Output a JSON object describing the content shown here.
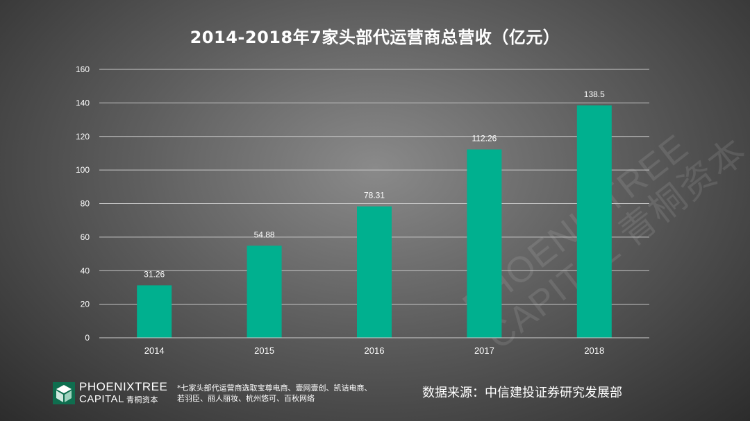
{
  "chart_data": {
    "type": "bar",
    "title": "2014-2018年7家头部代运营商总营收（亿元）",
    "categories": [
      "2014",
      "2015",
      "2016",
      "2017",
      "2018"
    ],
    "values": [
      31.26,
      54.88,
      78.31,
      112.26,
      138.5
    ],
    "data_labels": [
      "31.26",
      "54.88",
      "78.31",
      "112.26",
      "138.5"
    ],
    "yticks": [
      "0",
      "20",
      "40",
      "60",
      "80",
      "100",
      "120",
      "140",
      "160"
    ],
    "ylim": [
      0,
      160
    ],
    "grid": true,
    "bar_color": "#00b08f"
  },
  "footer": {
    "logo_line1": "PHOENIXTREE",
    "logo_line2": "CAPITAL",
    "logo_cn": "青桐资本",
    "note_line1": "*七家头部代运营商选取宝尊电商、壹网壹创、凯诘电商、",
    "note_line2": "若羽臣、丽人丽妆、杭州悠可、百秋网络",
    "source": "数据来源：中信建投证券研究发展部"
  },
  "watermark": {
    "line1": "PHOENIXTREE",
    "line2": "CAPITAL 青桐资本"
  }
}
